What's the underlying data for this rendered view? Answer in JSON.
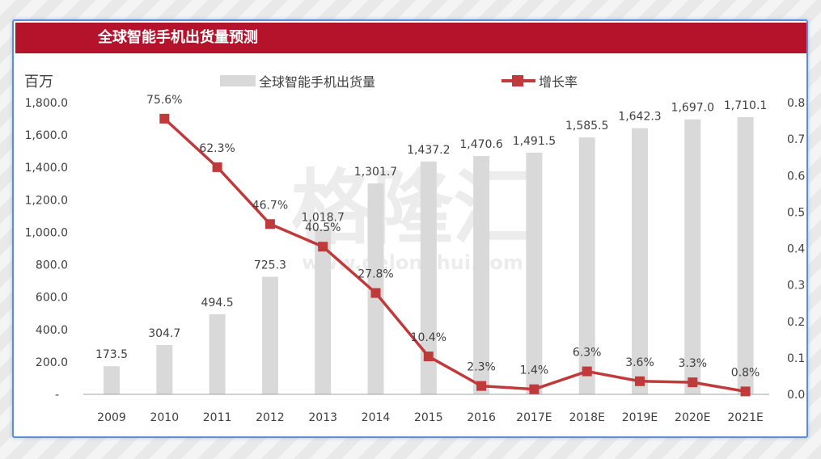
{
  "header": {
    "title": "全球智能手机出货量预测"
  },
  "watermark": {
    "text": "格隆汇",
    "url": "www.gelonghui.com"
  },
  "colors": {
    "bar": "#d9d9d9",
    "line": "#c0393b",
    "title_bg": "#b5122b",
    "frame": "#5a8fd8"
  },
  "chart_data": {
    "type": "bar+line",
    "title": "全球智能手机出货量预测",
    "categories": [
      "2009",
      "2010",
      "2011",
      "2012",
      "2013",
      "2014",
      "2015",
      "2016",
      "2017E",
      "2018E",
      "2019E",
      "2020E",
      "2021E"
    ],
    "series": [
      {
        "name": "全球智能手机出货量",
        "type": "bar",
        "axis": "left",
        "values": [
          173.5,
          304.7,
          494.5,
          725.3,
          1018.7,
          1301.7,
          1437.2,
          1470.6,
          1491.5,
          1585.5,
          1642.3,
          1697.0,
          1710.1
        ],
        "labels": [
          "173.5",
          "304.7",
          "494.5",
          "725.3",
          "1,018.7",
          "1,301.7",
          "1,437.2",
          "1,470.6",
          "1,491.5",
          "1,585.5",
          "1,642.3",
          "1,697.0",
          "1,710.1"
        ]
      },
      {
        "name": "增长率",
        "type": "line",
        "axis": "right",
        "values": [
          null,
          0.756,
          0.623,
          0.467,
          0.405,
          0.278,
          0.104,
          0.023,
          0.014,
          0.063,
          0.036,
          0.033,
          0.008
        ],
        "labels": [
          null,
          "75.6%",
          "62.3%",
          "46.7%",
          "40.5%",
          "27.8%",
          "10.4%",
          "2.3%",
          "1.4%",
          "6.3%",
          "3.6%",
          "3.3%",
          "0.8%"
        ]
      }
    ],
    "ylabel_left": "百万",
    "ylim_left": [
      0,
      1800
    ],
    "yticks_left": [
      "-",
      "200.0",
      "400.0",
      "600.0",
      "800.0",
      "1,000.0",
      "1,200.0",
      "1,400.0",
      "1,600.0",
      "1,800.0"
    ],
    "ylim_right": [
      0,
      0.8
    ],
    "yticks_right": [
      "0.0",
      "0.1",
      "0.2",
      "0.3",
      "0.4",
      "0.5",
      "0.6",
      "0.7",
      "0.8"
    ],
    "legend_position": "top",
    "grid": false
  }
}
